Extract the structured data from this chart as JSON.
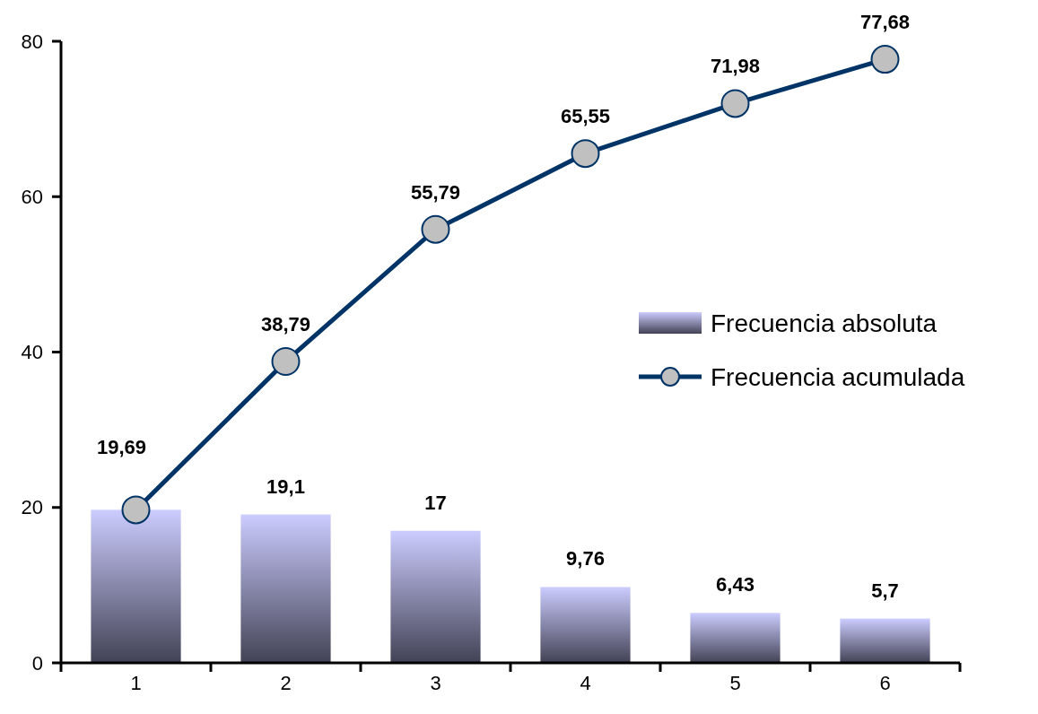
{
  "chart_data": {
    "type": "bar",
    "categories": [
      "1",
      "2",
      "3",
      "4",
      "5",
      "6"
    ],
    "series": [
      {
        "name": "Frecuencia absoluta",
        "color": "#ccccff",
        "values": [
          19.7,
          19.1,
          17,
          9.76,
          6.43,
          5.7
        ],
        "value_labels": [
          null,
          "19,1",
          "17",
          "9,76",
          "6,43",
          "5,7"
        ]
      },
      {
        "name": "Frecuencia acumulada",
        "type": "line",
        "color": "#003366",
        "values": [
          19.69,
          38.79,
          55.79,
          65.55,
          71.98,
          77.68
        ],
        "value_labels": [
          "19,69",
          "38,79",
          "55,79",
          "65,55",
          "71,98",
          "77,68"
        ]
      }
    ],
    "ylim": [
      0,
      80
    ],
    "yticks": [
      0,
      20,
      40,
      60,
      80
    ],
    "grid": false,
    "legend": "right",
    "marker": "circle",
    "line_style": "solid"
  }
}
